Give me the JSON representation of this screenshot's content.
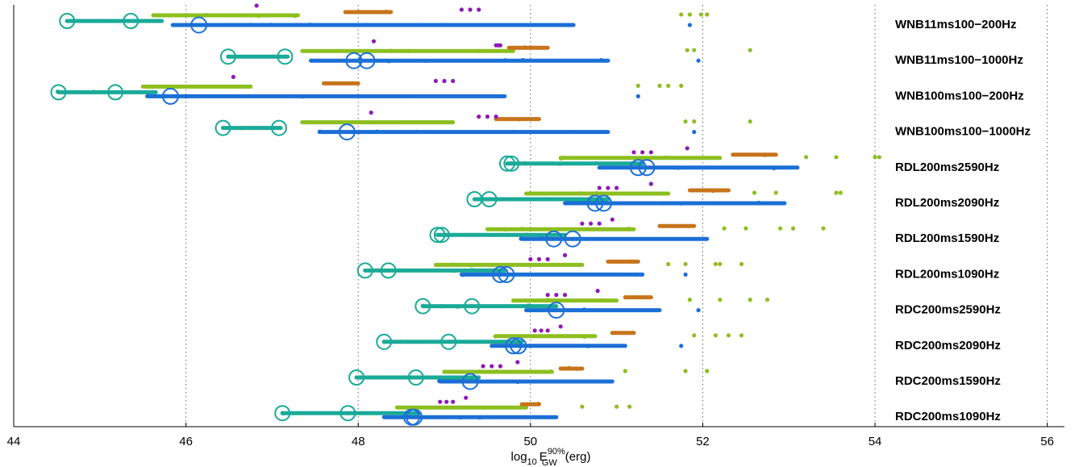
{
  "chart_data": {
    "type": "scatter",
    "title": "",
    "xlabel": {
      "prefix": "log",
      "sub": "10",
      "E": "E",
      "sup": "90%",
      "sub2": "GW",
      "unit": "(erg)"
    },
    "xlim": [
      44,
      56.2
    ],
    "xticks": [
      44,
      46,
      48,
      50,
      52,
      54,
      56
    ],
    "grid_x": [
      46,
      48,
      50,
      52,
      54,
      56
    ],
    "grid": "x-dotted",
    "legend": "none",
    "colors": {
      "teal": "#1aaa98",
      "green": "#8cbf1f",
      "orange": "#c7741b",
      "purple": "#8e1ab8",
      "blue": "#1b6fd6"
    },
    "waveforms": [
      {
        "label": "WNB11ms100−200Hz",
        "circles_teal": [
          44.62,
          45.36
        ],
        "circles_blue": [
          46.15
        ],
        "teal": [
          44.62,
          45.72
        ],
        "green": [
          45.62,
          47.3
        ],
        "orange": [
          47.85,
          48.38
        ],
        "blue": [
          45.85,
          50.5
        ],
        "blue_scatter": [
          51.85
        ],
        "purple": [
          [
            46.82
          ],
          [
            49.2,
            49.4
          ]
        ],
        "green_out": [
          51.75,
          51.85,
          51.98,
          52.05
        ]
      },
      {
        "label": "WNB11ms100−1000Hz",
        "circles_teal": [
          46.49,
          47.15
        ],
        "circles_blue": [
          47.95,
          48.1
        ],
        "teal": [
          46.49,
          47.18
        ],
        "green": [
          47.35,
          49.8
        ],
        "orange": [
          49.75,
          50.2
        ],
        "blue": [
          47.45,
          50.9
        ],
        "blue_scatter": [
          51.95
        ],
        "purple": [
          [
            48.18
          ],
          [
            49.6,
            49.65
          ]
        ],
        "green_out": [
          51.82,
          51.9,
          52.55
        ]
      },
      {
        "label": "WNB100ms100−200Hz",
        "circles_teal": [
          44.52,
          45.18
        ],
        "circles_blue": [
          45.82
        ],
        "teal": [
          44.52,
          45.65
        ],
        "green": [
          45.5,
          46.75
        ],
        "orange": [
          47.6,
          48.0
        ],
        "blue": [
          45.55,
          49.7
        ],
        "blue_scatter": [
          51.25
        ],
        "purple": [
          [
            46.55
          ],
          [
            48.9,
            49.1
          ]
        ],
        "green_out": [
          51.25,
          51.5,
          51.6,
          51.75
        ]
      },
      {
        "label": "WNB100ms100−1000Hz",
        "circles_teal": [
          46.43,
          47.08
        ],
        "circles_blue": [
          47.87
        ],
        "teal": [
          46.43,
          47.1
        ],
        "green": [
          47.35,
          49.1
        ],
        "orange": [
          49.6,
          50.1
        ],
        "blue": [
          47.55,
          50.9
        ],
        "blue_scatter": [
          51.9
        ],
        "purple": [
          [
            48.15
          ],
          [
            49.4,
            49.6
          ]
        ],
        "green_out": [
          51.8,
          51.9,
          52.55
        ]
      },
      {
        "label": "RDL200ms2590Hz",
        "circles_teal": [
          49.73,
          49.78
        ],
        "circles_blue": [
          51.25,
          51.35
        ],
        "teal": [
          49.73,
          51.3
        ],
        "green": [
          50.35,
          52.2
        ],
        "orange": [
          52.35,
          52.85
        ],
        "blue": [
          50.8,
          53.1
        ],
        "blue_scatter": [],
        "purple": [
          [
            51.82
          ],
          [
            51.2,
            51.4
          ]
        ],
        "green_out": [
          53.2,
          53.55,
          54.0,
          54.05
        ]
      },
      {
        "label": "RDL200ms2090Hz",
        "circles_teal": [
          49.35,
          49.52
        ],
        "circles_blue": [
          50.75,
          50.85
        ],
        "teal": [
          49.35,
          50.9
        ],
        "green": [
          49.95,
          51.6
        ],
        "orange": [
          51.85,
          52.3
        ],
        "blue": [
          50.4,
          52.95
        ],
        "blue_scatter": [],
        "purple": [
          [
            51.4
          ],
          [
            50.8,
            51.0
          ]
        ],
        "green_out": [
          52.6,
          52.85,
          53.55,
          53.6
        ]
      },
      {
        "label": "RDL200ms1590Hz",
        "circles_teal": [
          48.92,
          48.97
        ],
        "circles_blue": [
          50.27,
          50.49
        ],
        "teal": [
          48.92,
          50.4
        ],
        "green": [
          49.5,
          51.2
        ],
        "orange": [
          51.5,
          51.9
        ],
        "blue": [
          49.9,
          52.05
        ],
        "blue_scatter": [],
        "purple": [
          [
            50.95
          ],
          [
            50.6,
            50.8
          ]
        ],
        "green_out": [
          52.25,
          52.5,
          52.9,
          53.05,
          53.4
        ]
      },
      {
        "label": "RDL200ms1090Hz",
        "circles_teal": [
          48.08,
          48.35
        ],
        "circles_blue": [
          49.65,
          49.72
        ],
        "teal": [
          48.08,
          49.7
        ],
        "green": [
          48.9,
          50.6
        ],
        "orange": [
          50.9,
          51.25
        ],
        "blue": [
          49.2,
          51.3
        ],
        "blue_scatter": [
          51.8
        ],
        "purple": [
          [
            50.4
          ],
          [
            50.0,
            50.2
          ]
        ],
        "green_out": [
          51.6,
          51.8,
          52.15,
          52.2,
          52.45
        ]
      },
      {
        "label": "RDC200ms2590Hz",
        "circles_teal": [
          48.75,
          49.32
        ],
        "circles_blue": [
          50.3
        ],
        "teal": [
          48.75,
          50.3
        ],
        "green": [
          49.8,
          51.0
        ],
        "orange": [
          51.1,
          51.4
        ],
        "blue": [
          49.95,
          51.5
        ],
        "blue_scatter": [
          51.95
        ],
        "purple": [
          [
            50.78
          ],
          [
            50.2,
            50.4
          ]
        ],
        "green_out": [
          51.85,
          52.2,
          52.55,
          52.75
        ]
      },
      {
        "label": "RDC200ms2090Hz",
        "circles_teal": [
          48.3,
          49.05
        ],
        "circles_blue": [
          49.8,
          49.86
        ],
        "teal": [
          48.3,
          49.9
        ],
        "green": [
          49.6,
          50.75
        ],
        "orange": [
          50.95,
          51.2
        ],
        "blue": [
          49.55,
          51.1
        ],
        "blue_scatter": [
          51.75
        ],
        "purple": [
          [
            50.35
          ],
          [
            50.05,
            50.2
          ]
        ],
        "green_out": [
          51.9,
          52.15,
          52.3,
          52.45
        ]
      },
      {
        "label": "RDC200ms1590Hz",
        "circles_teal": [
          47.98,
          48.67
        ],
        "circles_blue": [
          49.3
        ],
        "teal": [
          47.98,
          49.4
        ],
        "green": [
          49.0,
          50.25
        ],
        "orange": [
          50.35,
          50.6
        ],
        "blue": [
          48.95,
          50.95
        ],
        "blue_scatter": [],
        "purple": [
          [
            49.85
          ],
          [
            49.45,
            49.65
          ]
        ],
        "green_out": [
          51.1,
          51.8,
          52.05
        ]
      },
      {
        "label": "RDC200ms1090Hz",
        "circles_teal": [
          47.12,
          47.88
        ],
        "circles_blue": [
          48.62,
          48.65
        ],
        "teal": [
          47.12,
          48.7
        ],
        "green": [
          48.45,
          49.95
        ],
        "orange": [
          49.9,
          50.1
        ],
        "blue": [
          48.3,
          50.3
        ],
        "blue_scatter": [],
        "purple": [
          [
            49.25
          ],
          [
            48.95,
            49.1
          ]
        ],
        "green_out": [
          50.6,
          51.0,
          51.15
        ]
      }
    ]
  }
}
